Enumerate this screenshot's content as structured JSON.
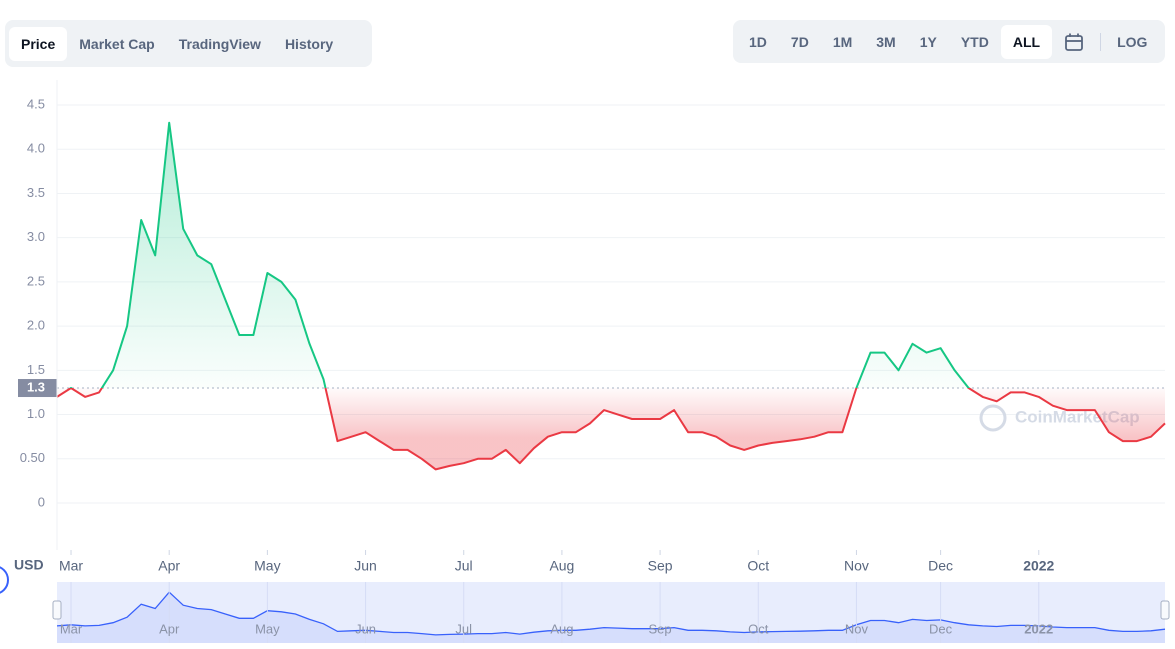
{
  "tabs": [
    "Price",
    "Market Cap",
    "TradingView",
    "History"
  ],
  "ranges": [
    "1D",
    "7D",
    "1M",
    "3M",
    "1Y",
    "YTD",
    "ALL"
  ],
  "log_label": "LOG",
  "chart_data": {
    "type": "line",
    "categories": [
      null,
      "Mar",
      null,
      null,
      null,
      null,
      null,
      null,
      "Apr",
      null,
      null,
      null,
      null,
      null,
      null,
      "May",
      null,
      null,
      null,
      null,
      null,
      null,
      "Jun",
      null,
      null,
      null,
      null,
      null,
      null,
      "Jul",
      null,
      null,
      null,
      null,
      null,
      null,
      "Aug",
      null,
      null,
      null,
      null,
      null,
      null,
      "Sep",
      null,
      null,
      null,
      null,
      null,
      null,
      "Oct",
      null,
      null,
      null,
      null,
      null,
      null,
      "Nov",
      null,
      null,
      null,
      null,
      null,
      "Dec",
      null,
      null,
      null,
      null,
      null,
      null,
      "2022",
      null,
      null,
      null,
      null,
      null,
      null,
      null,
      null,
      null
    ],
    "values": [
      1.2,
      1.3,
      1.2,
      1.25,
      1.5,
      2.0,
      3.2,
      2.8,
      4.3,
      3.1,
      2.8,
      2.7,
      2.3,
      1.9,
      1.9,
      2.6,
      2.5,
      2.3,
      1.8,
      1.4,
      0.7,
      0.75,
      0.8,
      0.7,
      0.6,
      0.6,
      0.5,
      0.38,
      0.42,
      0.45,
      0.5,
      0.5,
      0.6,
      0.45,
      0.62,
      0.75,
      0.8,
      0.8,
      0.9,
      1.05,
      1.0,
      0.95,
      0.95,
      0.95,
      1.05,
      0.8,
      0.8,
      0.75,
      0.65,
      0.6,
      0.65,
      0.68,
      0.7,
      0.72,
      0.75,
      0.8,
      0.8,
      1.3,
      1.7,
      1.7,
      1.5,
      1.8,
      1.7,
      1.75,
      1.5,
      1.3,
      1.2,
      1.15,
      1.25,
      1.25,
      1.2,
      1.1,
      1.05,
      1.05,
      1.05,
      0.8,
      0.7,
      0.7,
      0.75,
      0.9
    ],
    "ylim": [
      0,
      4.5
    ],
    "yticks": [
      0,
      {
        "value": 0.5,
        "label": "0.50"
      },
      {
        "value": 1,
        "label": "1.0"
      },
      1.5,
      {
        "value": 2,
        "label": "2.0"
      },
      2.5,
      {
        "value": 3,
        "label": "3.0"
      },
      3.5,
      {
        "value": 4,
        "label": "4.0"
      },
      4.5
    ],
    "grid": true,
    "baseline": 1.3,
    "up_color": "#16c784",
    "down_color": "#ea3943",
    "navigator_color": "#3861fb",
    "currency": "USD",
    "watermark": "CoinMarketCap"
  }
}
